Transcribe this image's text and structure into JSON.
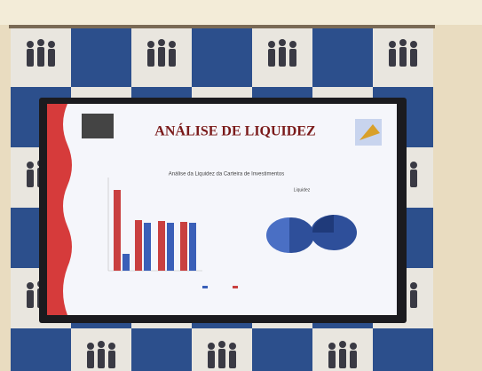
{
  "slide": {
    "title": "ANÁLISE DE LIQUIDEZ",
    "chart_title": "Análise da Liquidez da Carteira de Investimentos",
    "pie_title": "Liquidez"
  }
}
